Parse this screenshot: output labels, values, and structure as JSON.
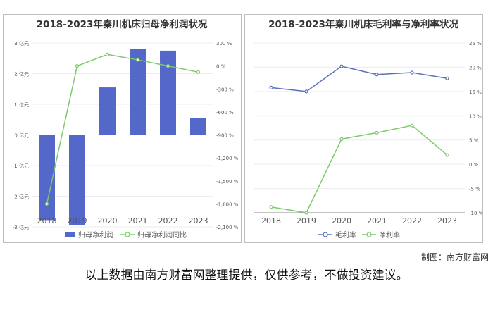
{
  "colors": {
    "bar": "#5468c9",
    "line_green": "#7cc96a",
    "line_blue": "#5b72b8",
    "axis": "#888888",
    "grid": "#ececec",
    "text": "#555555",
    "title": "#333333"
  },
  "chart_data": [
    {
      "type": "bar",
      "title": "2018-2023年秦川机床归母净利润状况",
      "categories": [
        "2018",
        "2019",
        "2020",
        "2021",
        "2022",
        "2023"
      ],
      "series": [
        {
          "name": "归母净利润",
          "kind": "bar",
          "axis": "left",
          "values": [
            -2.78,
            -2.95,
            1.55,
            2.8,
            2.75,
            0.55
          ]
        },
        {
          "name": "归母净利润同比",
          "kind": "line",
          "axis": "right",
          "values": [
            -1800,
            0,
            150,
            80,
            0,
            -80
          ]
        }
      ],
      "yleft": {
        "min": -3,
        "max": 3,
        "ticks": [
          3,
          2,
          1,
          0,
          -1,
          -2,
          -3
        ],
        "labels": [
          "3 亿元",
          "2 亿元",
          "1 亿元",
          "0 亿元",
          "-1 亿元",
          "-2 亿元",
          "-3 亿元"
        ]
      },
      "yright": {
        "min": -2100,
        "max": 300,
        "ticks": [
          300,
          0,
          -300,
          -600,
          -900,
          -1200,
          -1500,
          -1800,
          -2100
        ],
        "labels": [
          "300 %",
          "0 %",
          "-300 %",
          "-600 %",
          "-900 %",
          "-1,200 %",
          "-1,500 %",
          "-1,800 %",
          "-2,100 %"
        ]
      },
      "legend": [
        "归母净利润",
        "归母净利润同比"
      ],
      "legend_position": "bottom",
      "grid": true
    },
    {
      "type": "line",
      "title": "2018-2023年秦川机床毛利率与净利率状况",
      "categories": [
        "2018",
        "2019",
        "2020",
        "2021",
        "2022",
        "2023"
      ],
      "series": [
        {
          "name": "毛利率",
          "values": [
            15.8,
            15.0,
            20.2,
            18.5,
            18.9,
            17.7
          ]
        },
        {
          "name": "净利率",
          "values": [
            -8.8,
            -10.0,
            5.2,
            6.5,
            8.0,
            1.9
          ]
        }
      ],
      "yright": {
        "min": -10,
        "max": 25,
        "ticks": [
          25,
          20,
          15,
          10,
          5,
          0,
          -5,
          -10
        ],
        "labels": [
          "25 %",
          "20 %",
          "15 %",
          "10 %",
          "5 %",
          "0 %",
          "-5 %",
          "-10 %"
        ]
      },
      "legend": [
        "毛利率",
        "净利率"
      ],
      "legend_position": "bottom",
      "grid": true
    }
  ],
  "footer": {
    "credit": "制图：南方财富网",
    "note": "以上数据由南方财富网整理提供，仅供参考，不做投资建议。"
  }
}
